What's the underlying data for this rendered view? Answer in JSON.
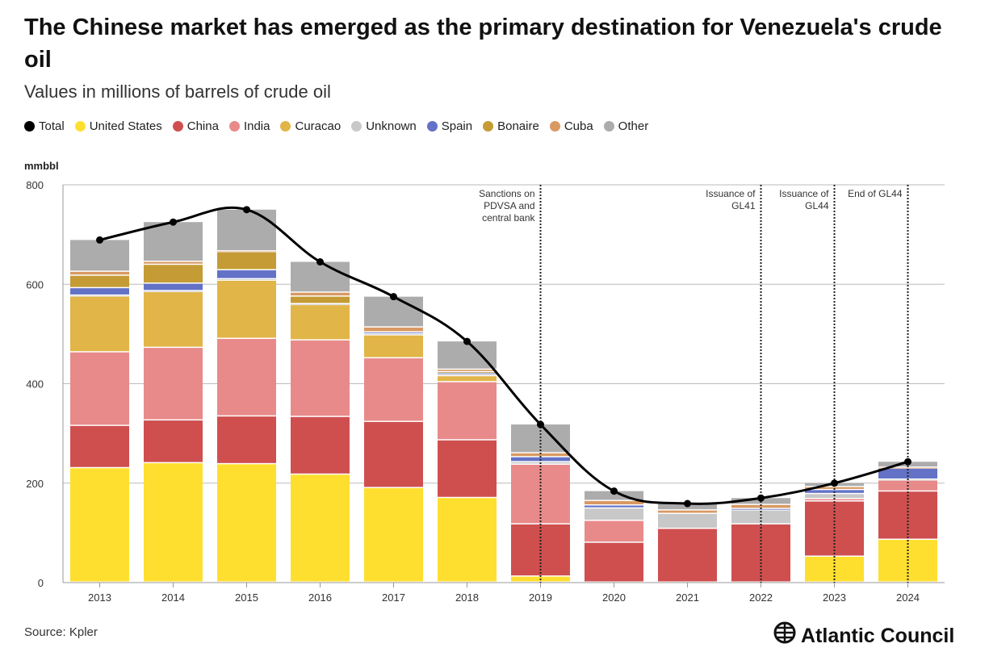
{
  "title": "The Chinese market has emerged as the primary destination for Venezuela's crude oil",
  "subtitle": "Values in millions of barrels of crude oil",
  "source": "Source: Kpler",
  "logo": "Atlantic Council",
  "chart_data": {
    "type": "bar",
    "stacked": true,
    "ylabel": "mmbbl",
    "ylim": [
      0,
      800
    ],
    "yticks": [
      0,
      200,
      400,
      600,
      800
    ],
    "grid": true,
    "legend_placement": "top-left",
    "categories": [
      "2013",
      "2014",
      "2015",
      "2016",
      "2017",
      "2018",
      "2019",
      "2020",
      "2021",
      "2022",
      "2023",
      "2024"
    ],
    "series": [
      {
        "name": "United States",
        "color": "#fedf2f",
        "values": [
          230,
          240,
          238,
          217,
          190,
          170,
          12,
          0,
          0,
          0,
          52,
          86
        ]
      },
      {
        "name": "China",
        "color": "#cf4f4f",
        "values": [
          85,
          86,
          96,
          116,
          133,
          116,
          105,
          80,
          108,
          117,
          111,
          97
        ]
      },
      {
        "name": "India",
        "color": "#e88a8a",
        "values": [
          148,
          146,
          156,
          154,
          128,
          117,
          120,
          44,
          0,
          0,
          5,
          22
        ]
      },
      {
        "name": "Curacao",
        "color": "#e1b547",
        "values": [
          112,
          112,
          117,
          71,
          46,
          12,
          0,
          0,
          0,
          0,
          0,
          0
        ]
      },
      {
        "name": "Unknown",
        "color": "#c8c8c8",
        "values": [
          2,
          2,
          3,
          2,
          3,
          3,
          5,
          25,
          30,
          28,
          10,
          2
        ]
      },
      {
        "name": "Spain",
        "color": "#6372c6",
        "values": [
          15,
          15,
          18,
          0,
          3,
          3,
          10,
          6,
          0,
          3,
          8,
          22
        ]
      },
      {
        "name": "Bonaire",
        "color": "#c49b35",
        "values": [
          25,
          38,
          36,
          15,
          0,
          2,
          0,
          0,
          0,
          0,
          0,
          0
        ]
      },
      {
        "name": "Cuba",
        "color": "#d99962",
        "values": [
          8,
          6,
          2,
          8,
          10,
          5,
          8,
          9,
          7,
          8,
          6,
          2
        ]
      },
      {
        "name": "Other",
        "color": "#acacac",
        "values": [
          64,
          80,
          84,
          62,
          62,
          57,
          58,
          20,
          14,
          14,
          8,
          12
        ]
      }
    ],
    "total": {
      "name": "Total",
      "color": "#000000",
      "values": [
        689,
        725,
        750,
        645,
        575,
        485,
        318,
        184,
        159,
        170,
        200,
        243
      ]
    },
    "annotations": [
      {
        "x": "2019",
        "lines": [
          "Sanctions on",
          "PDVSA and",
          "central bank"
        ]
      },
      {
        "x": "2022",
        "lines": [
          "Issuance of",
          "GL41"
        ]
      },
      {
        "x": "2023",
        "lines": [
          "Issuance of",
          "GL44"
        ]
      },
      {
        "x": "2024",
        "lines": [
          "End of GL44"
        ]
      }
    ]
  }
}
